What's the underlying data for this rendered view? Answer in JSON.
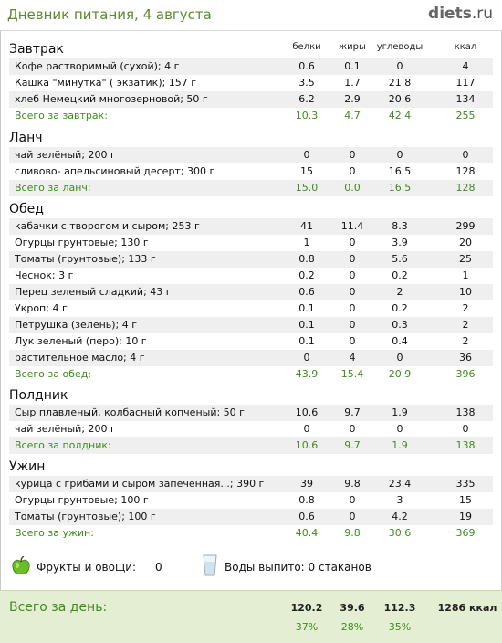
{
  "header": {
    "title": "Дневник питания, 4 августа",
    "logo_main": "diets",
    "logo_tld": ".ru"
  },
  "columns": {
    "protein": "белки",
    "fat": "жиры",
    "carbs": "углеводы",
    "kcal": "ккал"
  },
  "meals": [
    {
      "title": "Завтрак",
      "items": [
        {
          "name": "Кофе растворимый (сухой); 4 г",
          "protein": "0.6",
          "fat": "0.1",
          "carbs": "0",
          "kcal": "4"
        },
        {
          "name": "Кашка \"минутка\"  ( экзатик); 157 г",
          "protein": "3.5",
          "fat": "1.7",
          "carbs": "21.8",
          "kcal": "117"
        },
        {
          "name": "хлеб Немецкий многозерновой; 50 г",
          "protein": "6.2",
          "fat": "2.9",
          "carbs": "20.6",
          "kcal": "134"
        }
      ],
      "total": {
        "name": "Всего за завтрак:",
        "protein": "10.3",
        "fat": "4.7",
        "carbs": "42.4",
        "kcal": "255"
      }
    },
    {
      "title": "Ланч",
      "items": [
        {
          "name": "чай зелёный; 200 г",
          "protein": "0",
          "fat": "0",
          "carbs": "0",
          "kcal": "0"
        },
        {
          "name": "сливово- апельсиновый  десерт; 300 г",
          "protein": "15",
          "fat": "0",
          "carbs": "16.5",
          "kcal": "128"
        }
      ],
      "total": {
        "name": "Всего за ланч:",
        "protein": "15.0",
        "fat": "0.0",
        "carbs": "16.5",
        "kcal": "128"
      }
    },
    {
      "title": "Обед",
      "items": [
        {
          "name": "кабачки с творогом и сыром; 253 г",
          "protein": "41",
          "fat": "11.4",
          "carbs": "8.3",
          "kcal": "299"
        },
        {
          "name": "Огурцы грунтовые; 130 г",
          "protein": "1",
          "fat": "0",
          "carbs": "3.9",
          "kcal": "20"
        },
        {
          "name": "Томаты (грунтовые); 133 г",
          "protein": "0.8",
          "fat": "0",
          "carbs": "5.6",
          "kcal": "25"
        },
        {
          "name": "Чеснок; 3 г",
          "protein": "0.2",
          "fat": "0",
          "carbs": "0.2",
          "kcal": "1"
        },
        {
          "name": "Перец зеленый сладкий; 43 г",
          "protein": "0.6",
          "fat": "0",
          "carbs": "2",
          "kcal": "10"
        },
        {
          "name": "Укроп; 4 г",
          "protein": "0.1",
          "fat": "0",
          "carbs": "0.2",
          "kcal": "2"
        },
        {
          "name": "Петрушка (зелень); 4 г",
          "protein": "0.1",
          "fat": "0",
          "carbs": "0.3",
          "kcal": "2"
        },
        {
          "name": "Лук зеленый (перо); 10 г",
          "protein": "0.1",
          "fat": "0",
          "carbs": "0.4",
          "kcal": "2"
        },
        {
          "name": "растительное масло; 4 г",
          "protein": "0",
          "fat": "4",
          "carbs": "0",
          "kcal": "36"
        }
      ],
      "total": {
        "name": "Всего за обед:",
        "protein": "43.9",
        "fat": "15.4",
        "carbs": "20.9",
        "kcal": "396"
      }
    },
    {
      "title": "Полдник",
      "items": [
        {
          "name": "Сыр плавленый, колбасный копченый; 50 г",
          "protein": "10.6",
          "fat": "9.7",
          "carbs": "1.9",
          "kcal": "138"
        },
        {
          "name": "чай зелёный; 200 г",
          "protein": "0",
          "fat": "0",
          "carbs": "0",
          "kcal": "0"
        }
      ],
      "total": {
        "name": "Всего за полдник:",
        "protein": "10.6",
        "fat": "9.7",
        "carbs": "1.9",
        "kcal": "138"
      }
    },
    {
      "title": "Ужин",
      "items": [
        {
          "name": "курица с грибами и сыром запеченная...; 390 г",
          "protein": "39",
          "fat": "9.8",
          "carbs": "23.4",
          "kcal": "335"
        },
        {
          "name": "Огурцы грунтовые; 100 г",
          "protein": "0.8",
          "fat": "0",
          "carbs": "3",
          "kcal": "15"
        },
        {
          "name": "Томаты (грунтовые); 100 г",
          "protein": "0.6",
          "fat": "0",
          "carbs": "4.2",
          "kcal": "19"
        }
      ],
      "total": {
        "name": "Всего за ужин:",
        "protein": "40.4",
        "fat": "9.8",
        "carbs": "30.6",
        "kcal": "369"
      }
    }
  ],
  "extras": {
    "fruits_label": "Фрукты и овощи:",
    "fruits_value": "0",
    "water_label": "Воды выпито: 0 стаканов"
  },
  "day_total": {
    "label": "Всего за день:",
    "protein": "120.2",
    "fat": "39.6",
    "carbs": "112.3",
    "kcal": "1286 ккал",
    "protein_pct": "37%",
    "fat_pct": "28%",
    "carbs_pct": "35%"
  }
}
